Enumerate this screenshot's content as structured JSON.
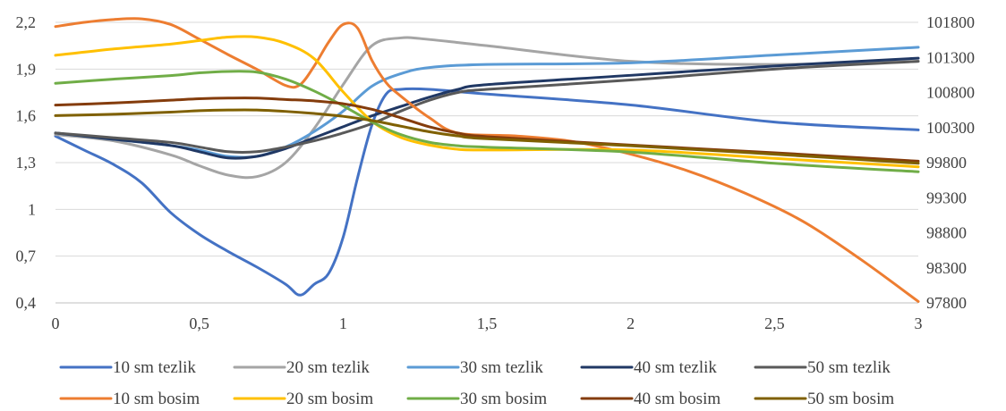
{
  "chart_data": {
    "type": "line",
    "title": "",
    "xlabel": "",
    "ylabel": "",
    "xlim": [
      0,
      3
    ],
    "ylim": [
      0.4,
      2.2
    ],
    "y2lim": [
      97800,
      101800
    ],
    "x_ticks": [
      "0",
      "0,5",
      "1",
      "1,5",
      "2",
      "2,5",
      "3"
    ],
    "x_tick_values": [
      0,
      0.5,
      1,
      1.5,
      2,
      2.5,
      3
    ],
    "y_ticks": [
      "0,4",
      "0,7",
      "1",
      "1,3",
      "1,6",
      "1,9",
      "2,2"
    ],
    "y_tick_values": [
      0.4,
      0.7,
      1.0,
      1.3,
      1.6,
      1.9,
      2.2
    ],
    "y2_ticks": [
      "97800",
      "98300",
      "98800",
      "99300",
      "99800",
      "100300",
      "100800",
      "101300",
      "101800"
    ],
    "y2_tick_values": [
      97800,
      98300,
      98800,
      99300,
      99800,
      100300,
      100800,
      101300,
      101800
    ],
    "grid": "horizontal",
    "legend_position": "bottom",
    "series": [
      {
        "name": "10 sm tezlik",
        "axis": "left",
        "color": "#4472C4",
        "x": [
          0,
          0.1,
          0.2,
          0.3,
          0.4,
          0.5,
          0.6,
          0.7,
          0.8,
          0.85,
          0.9,
          0.95,
          1.0,
          1.05,
          1.1,
          1.15,
          1.2,
          1.3,
          1.5,
          2.0,
          2.5,
          3.0
        ],
        "y": [
          1.47,
          1.38,
          1.29,
          1.17,
          0.98,
          0.84,
          0.73,
          0.63,
          0.52,
          0.45,
          0.52,
          0.59,
          0.82,
          1.2,
          1.54,
          1.74,
          1.77,
          1.77,
          1.74,
          1.67,
          1.56,
          1.51
        ]
      },
      {
        "name": "20 sm tezlik",
        "axis": "left",
        "color": "#A5A5A5",
        "x": [
          0,
          0.2,
          0.4,
          0.5,
          0.6,
          0.7,
          0.8,
          0.9,
          1.0,
          1.1,
          1.2,
          1.3,
          1.5,
          2.0,
          2.5,
          3.0
        ],
        "y": [
          1.48,
          1.44,
          1.35,
          1.28,
          1.22,
          1.21,
          1.3,
          1.52,
          1.8,
          2.05,
          2.1,
          2.09,
          2.05,
          1.95,
          1.93,
          1.95
        ]
      },
      {
        "name": "30 sm tezlik",
        "axis": "left",
        "color": "#5B9BD5",
        "x": [
          0,
          0.2,
          0.4,
          0.5,
          0.6,
          0.7,
          0.8,
          0.9,
          1.0,
          1.1,
          1.2,
          1.3,
          1.5,
          2.0,
          2.5,
          3.0
        ],
        "y": [
          1.49,
          1.45,
          1.41,
          1.38,
          1.34,
          1.34,
          1.4,
          1.5,
          1.63,
          1.79,
          1.87,
          1.91,
          1.93,
          1.94,
          1.99,
          2.04
        ]
      },
      {
        "name": "40 sm tezlik",
        "axis": "left",
        "color": "#203864",
        "x": [
          0,
          0.2,
          0.4,
          0.5,
          0.6,
          0.7,
          0.8,
          0.9,
          1.0,
          1.1,
          1.2,
          1.3,
          1.4,
          1.5,
          2.0,
          2.5,
          3.0
        ],
        "y": [
          1.49,
          1.45,
          1.41,
          1.37,
          1.33,
          1.34,
          1.39,
          1.46,
          1.53,
          1.6,
          1.66,
          1.72,
          1.77,
          1.8,
          1.86,
          1.92,
          1.97
        ]
      },
      {
        "name": "50 sm tezlik",
        "axis": "left",
        "color": "#595959",
        "x": [
          0,
          0.2,
          0.4,
          0.5,
          0.6,
          0.7,
          0.8,
          0.9,
          1.0,
          1.1,
          1.2,
          1.3,
          1.4,
          1.5,
          2.0,
          2.5,
          3.0
        ],
        "y": [
          1.49,
          1.46,
          1.43,
          1.4,
          1.37,
          1.37,
          1.4,
          1.44,
          1.49,
          1.55,
          1.63,
          1.7,
          1.75,
          1.77,
          1.83,
          1.9,
          1.95
        ]
      },
      {
        "name": "10 sm bosim",
        "axis": "right",
        "color": "#ED7D31",
        "x": [
          0,
          0.1,
          0.2,
          0.3,
          0.4,
          0.5,
          0.6,
          0.7,
          0.8,
          0.85,
          0.9,
          0.95,
          1.0,
          1.05,
          1.1,
          1.15,
          1.2,
          1.3,
          1.4,
          1.6,
          1.8,
          2.0,
          2.2,
          2.4,
          2.6,
          2.8,
          3.0
        ],
        "y": [
          101740,
          101800,
          101840,
          101850,
          101770,
          101560,
          101340,
          101130,
          100900,
          100910,
          101180,
          101520,
          101770,
          101720,
          101260,
          100940,
          100750,
          100440,
          100220,
          100180,
          100100,
          99920,
          99680,
          99360,
          98960,
          98420,
          97820
        ]
      },
      {
        "name": "20 sm bosim",
        "axis": "right",
        "color": "#FFC000",
        "x": [
          0,
          0.2,
          0.4,
          0.5,
          0.6,
          0.7,
          0.8,
          0.9,
          1.0,
          1.1,
          1.2,
          1.3,
          1.4,
          1.5,
          2.0,
          2.5,
          3.0
        ],
        "y": [
          101330,
          101420,
          101490,
          101540,
          101590,
          101590,
          101500,
          101280,
          100810,
          100390,
          100160,
          100050,
          99990,
          99980,
          99980,
          99860,
          99740
        ]
      },
      {
        "name": "30 sm bosim",
        "axis": "right",
        "color": "#70AD47",
        "x": [
          0,
          0.2,
          0.4,
          0.5,
          0.6,
          0.7,
          0.8,
          0.9,
          1.0,
          1.1,
          1.2,
          1.3,
          1.4,
          1.5,
          2.0,
          2.5,
          3.0
        ],
        "y": [
          100930,
          100990,
          101040,
          101080,
          101100,
          101090,
          100990,
          100820,
          100610,
          100380,
          100200,
          100090,
          100040,
          100020,
          99950,
          99790,
          99670
        ]
      },
      {
        "name": "40 sm bosim",
        "axis": "right",
        "color": "#843C0C",
        "x": [
          0,
          0.2,
          0.4,
          0.5,
          0.6,
          0.7,
          0.8,
          0.9,
          1.0,
          1.1,
          1.2,
          1.3,
          1.4,
          1.5,
          2.0,
          2.5,
          3.0
        ],
        "y": [
          100620,
          100650,
          100690,
          100710,
          100720,
          100720,
          100700,
          100680,
          100640,
          100560,
          100440,
          100310,
          100220,
          100170,
          100050,
          99940,
          99820
        ]
      },
      {
        "name": "50 sm bosim",
        "axis": "right",
        "color": "#7F6000",
        "x": [
          0,
          0.2,
          0.4,
          0.5,
          0.6,
          0.7,
          0.8,
          0.9,
          1.0,
          1.1,
          1.2,
          1.3,
          1.4,
          1.5,
          2.0,
          2.5,
          3.0
        ],
        "y": [
          100470,
          100490,
          100520,
          100540,
          100550,
          100550,
          100530,
          100500,
          100460,
          100400,
          100320,
          100240,
          100180,
          100140,
          100040,
          99920,
          99790
        ]
      }
    ]
  }
}
